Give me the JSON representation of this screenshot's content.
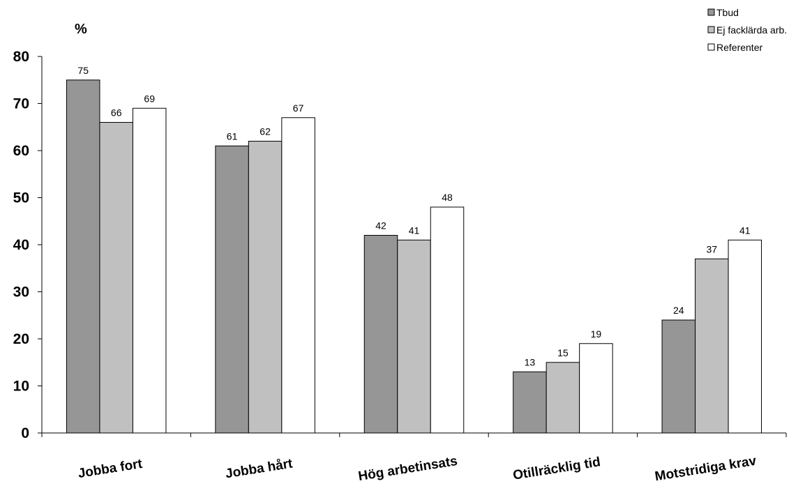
{
  "chart_data": {
    "type": "bar",
    "ylabel": "%",
    "ylim": [
      0,
      80
    ],
    "yticks": [
      "0",
      "10",
      "20",
      "30",
      "40",
      "50",
      "60",
      "70",
      "80"
    ],
    "grid": false,
    "legend_position": "top-right",
    "categories": [
      "Jobba fort",
      "Jobba hårt",
      "Hög arbetinsats",
      "Otillräcklig tid",
      "Motstridiga krav"
    ],
    "series": [
      {
        "name": "Tbud",
        "color": "#969696",
        "values": [
          75,
          61,
          42,
          13,
          24
        ]
      },
      {
        "name": "Ej facklärda arb.",
        "color": "#c0c0c0",
        "values": [
          66,
          62,
          41,
          15,
          37
        ]
      },
      {
        "name": "Referenter",
        "color": "#ffffff",
        "values": [
          69,
          67,
          48,
          19,
          41
        ]
      }
    ]
  }
}
